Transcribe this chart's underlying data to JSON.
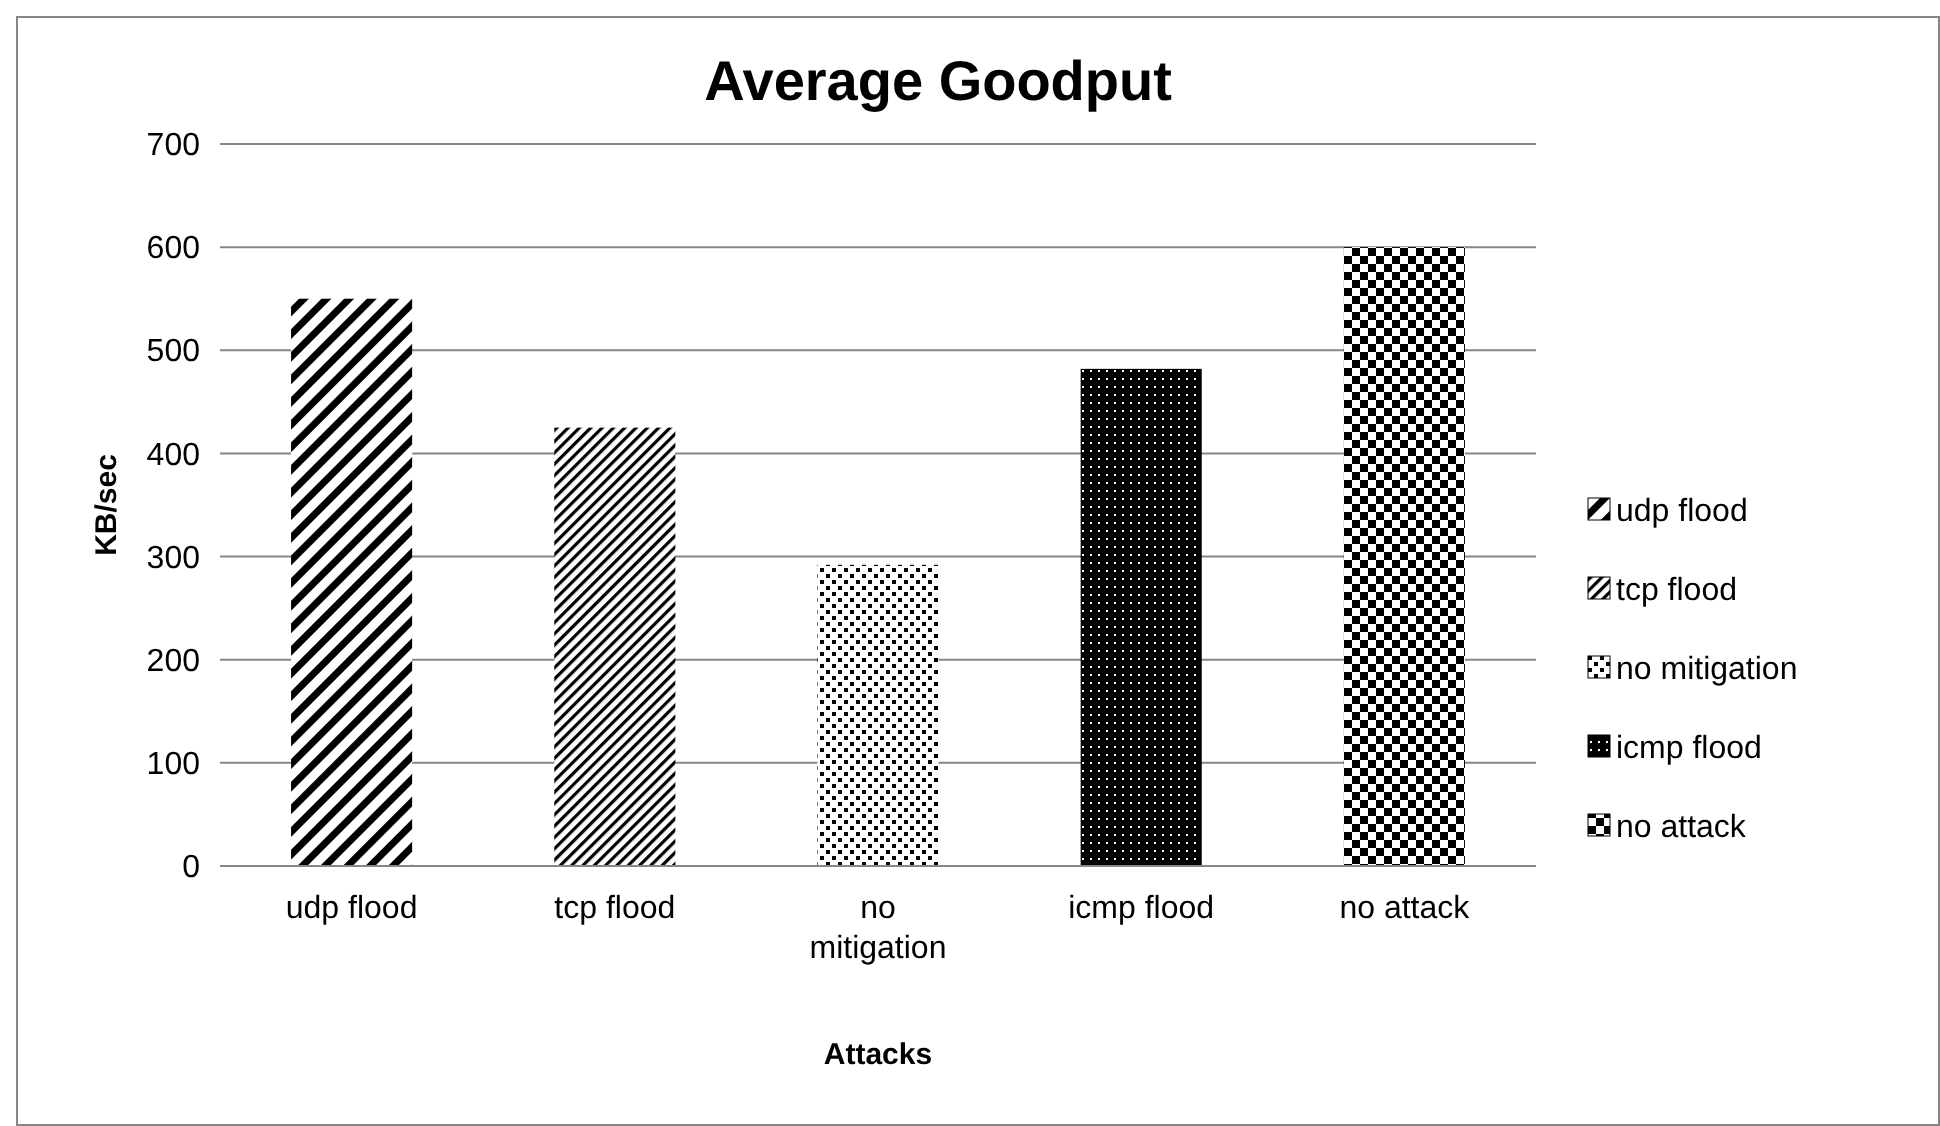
{
  "chart_data": {
    "type": "bar",
    "title": "Average Goodput",
    "xlabel": "Attacks",
    "ylabel": "KB/sec",
    "categories": [
      "udp flood",
      "tcp flood",
      "no mitigation",
      "icmp flood",
      "no attack"
    ],
    "series": [
      {
        "name": "udp flood",
        "color": "#000000",
        "values": [
          550,
          null,
          null,
          null,
          null
        ]
      },
      {
        "name": "tcp flood",
        "color": "#000000",
        "values": [
          null,
          425,
          null,
          null,
          null
        ]
      },
      {
        "name": "no mitigation",
        "color": "#000000",
        "values": [
          null,
          null,
          292,
          null,
          null
        ]
      },
      {
        "name": "icmp flood",
        "color": "#000000",
        "values": [
          null,
          null,
          null,
          482,
          null
        ]
      },
      {
        "name": "no attack",
        "color": "#000000",
        "values": [
          null,
          null,
          null,
          null,
          600
        ]
      }
    ],
    "ylim": [
      0,
      700
    ],
    "yticks": [
      0,
      100,
      200,
      300,
      400,
      500,
      600,
      700
    ],
    "grid": "y",
    "legend": "right"
  }
}
